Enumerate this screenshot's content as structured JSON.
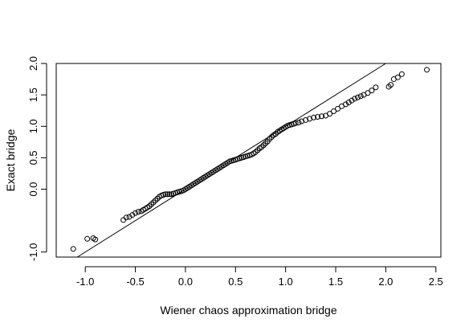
{
  "chart_data": {
    "type": "scatter",
    "title": "",
    "xlabel": "Wiener chaos approximation bridge",
    "ylabel": "Exact bridge",
    "xlim": [
      -1.29,
      2.55
    ],
    "ylim": [
      -1.08,
      2.0
    ],
    "xticks": [
      -1.0,
      -0.5,
      0.0,
      0.5,
      1.0,
      1.5,
      2.0,
      2.5
    ],
    "xtick_labels": [
      "-1.0",
      "-0.5",
      "0.0",
      "0.5",
      "1.0",
      "1.5",
      "2.0",
      "2.5"
    ],
    "yticks": [
      -1.0,
      0.0,
      0.5,
      1.0,
      1.5,
      2.0
    ],
    "ytick_labels": [
      "-1.0",
      "0.0",
      "0.5",
      "1.0",
      "1.5",
      "2.0"
    ],
    "grid": false,
    "legend": "none",
    "marker": "open-circle",
    "reference_line": {
      "slope": 1,
      "intercept": 0
    },
    "points": [
      [
        -1.12,
        -0.95
      ],
      [
        -0.98,
        -0.79
      ],
      [
        -0.92,
        -0.78
      ],
      [
        -0.9,
        -0.8
      ],
      [
        -0.62,
        -0.49
      ],
      [
        -0.59,
        -0.45
      ],
      [
        -0.56,
        -0.44
      ],
      [
        -0.53,
        -0.41
      ],
      [
        -0.5,
        -0.38
      ],
      [
        -0.47,
        -0.36
      ],
      [
        -0.44,
        -0.35
      ],
      [
        -0.42,
        -0.33
      ],
      [
        -0.4,
        -0.31
      ],
      [
        -0.38,
        -0.29
      ],
      [
        -0.36,
        -0.27
      ],
      [
        -0.34,
        -0.24
      ],
      [
        -0.32,
        -0.21
      ],
      [
        -0.3,
        -0.18
      ],
      [
        -0.28,
        -0.15
      ],
      [
        -0.26,
        -0.12
      ],
      [
        -0.24,
        -0.1
      ],
      [
        -0.22,
        -0.09
      ],
      [
        -0.2,
        -0.08
      ],
      [
        -0.18,
        -0.08
      ],
      [
        -0.16,
        -0.08
      ],
      [
        -0.14,
        -0.08
      ],
      [
        -0.12,
        -0.07
      ],
      [
        -0.1,
        -0.06
      ],
      [
        -0.08,
        -0.05
      ],
      [
        -0.06,
        -0.04
      ],
      [
        -0.04,
        -0.03
      ],
      [
        -0.02,
        -0.02
      ],
      [
        0.0,
        0.0
      ],
      [
        0.02,
        0.02
      ],
      [
        0.04,
        0.04
      ],
      [
        0.06,
        0.06
      ],
      [
        0.08,
        0.08
      ],
      [
        0.1,
        0.1
      ],
      [
        0.12,
        0.12
      ],
      [
        0.14,
        0.14
      ],
      [
        0.16,
        0.16
      ],
      [
        0.18,
        0.18
      ],
      [
        0.2,
        0.2
      ],
      [
        0.22,
        0.22
      ],
      [
        0.24,
        0.24
      ],
      [
        0.26,
        0.26
      ],
      [
        0.28,
        0.28
      ],
      [
        0.3,
        0.3
      ],
      [
        0.32,
        0.32
      ],
      [
        0.34,
        0.34
      ],
      [
        0.36,
        0.36
      ],
      [
        0.38,
        0.38
      ],
      [
        0.4,
        0.4
      ],
      [
        0.42,
        0.42
      ],
      [
        0.44,
        0.44
      ],
      [
        0.46,
        0.45
      ],
      [
        0.48,
        0.46
      ],
      [
        0.5,
        0.47
      ],
      [
        0.52,
        0.48
      ],
      [
        0.54,
        0.49
      ],
      [
        0.56,
        0.5
      ],
      [
        0.58,
        0.51
      ],
      [
        0.6,
        0.52
      ],
      [
        0.62,
        0.53
      ],
      [
        0.64,
        0.54
      ],
      [
        0.66,
        0.55
      ],
      [
        0.68,
        0.57
      ],
      [
        0.7,
        0.59
      ],
      [
        0.72,
        0.62
      ],
      [
        0.74,
        0.65
      ],
      [
        0.76,
        0.67
      ],
      [
        0.78,
        0.7
      ],
      [
        0.8,
        0.73
      ],
      [
        0.82,
        0.76
      ],
      [
        0.84,
        0.8
      ],
      [
        0.86,
        0.83
      ],
      [
        0.88,
        0.86
      ],
      [
        0.9,
        0.88
      ],
      [
        0.92,
        0.91
      ],
      [
        0.94,
        0.93
      ],
      [
        0.96,
        0.95
      ],
      [
        0.98,
        0.97
      ],
      [
        1.0,
        0.99
      ],
      [
        1.02,
        1.01
      ],
      [
        1.04,
        1.02
      ],
      [
        1.06,
        1.03
      ],
      [
        1.08,
        1.04
      ],
      [
        1.1,
        1.05
      ],
      [
        1.13,
        1.06
      ],
      [
        1.16,
        1.08
      ],
      [
        1.2,
        1.1
      ],
      [
        1.24,
        1.12
      ],
      [
        1.28,
        1.14
      ],
      [
        1.32,
        1.15
      ],
      [
        1.36,
        1.16
      ],
      [
        1.4,
        1.17
      ],
      [
        1.44,
        1.2
      ],
      [
        1.48,
        1.24
      ],
      [
        1.52,
        1.28
      ],
      [
        1.56,
        1.32
      ],
      [
        1.6,
        1.35
      ],
      [
        1.63,
        1.38
      ],
      [
        1.66,
        1.41
      ],
      [
        1.69,
        1.44
      ],
      [
        1.72,
        1.46
      ],
      [
        1.75,
        1.48
      ],
      [
        1.78,
        1.5
      ],
      [
        1.82,
        1.53
      ],
      [
        1.86,
        1.57
      ],
      [
        1.9,
        1.62
      ],
      [
        2.03,
        1.63
      ],
      [
        2.05,
        1.66
      ],
      [
        2.08,
        1.75
      ],
      [
        2.12,
        1.78
      ],
      [
        2.16,
        1.83
      ],
      [
        2.41,
        1.9
      ]
    ]
  }
}
